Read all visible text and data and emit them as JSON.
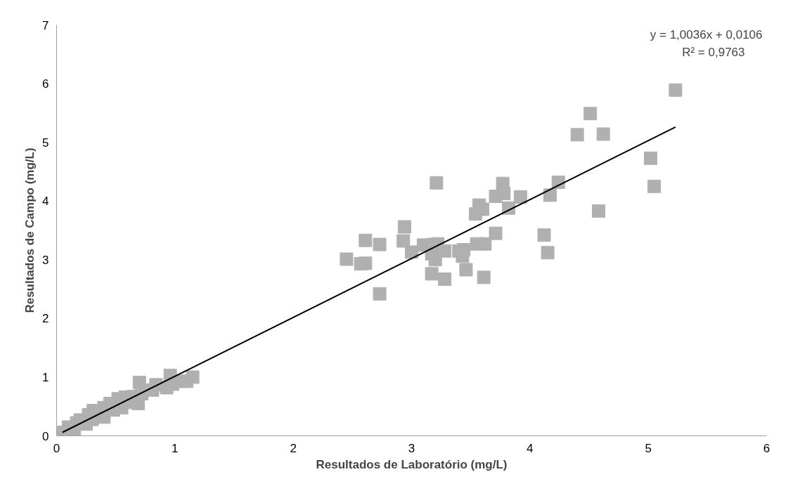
{
  "chart_data": {
    "type": "scatter",
    "xlabel": "Resultados de Laboratório (mg/L)",
    "ylabel": "Resultados de Campo (mg/L)",
    "annotations": [
      "y = 1,0036x + 0,0106",
      "R² = 0,9763"
    ],
    "xlim": [
      0,
      6
    ],
    "ylim": [
      0,
      7
    ],
    "xticks": [
      0,
      1,
      2,
      3,
      4,
      5,
      6
    ],
    "yticks": [
      0,
      1,
      2,
      3,
      4,
      5,
      6,
      7
    ],
    "grid": false,
    "marker": "square",
    "series": [
      {
        "color": "#b0b0b0",
        "x": [
          5.23,
          4.51,
          4.4,
          4.62,
          5.02,
          5.05,
          4.58,
          4.24,
          4.17,
          4.12,
          4.15,
          3.92,
          3.82,
          3.77,
          3.78,
          3.71,
          3.57,
          3.6,
          3.54,
          3.71,
          3.55,
          3.62,
          3.44,
          3.4,
          3.43,
          3.46,
          3.61,
          3.28,
          3.17,
          3.21,
          3.18,
          3.22,
          3.1,
          3.0,
          3.2,
          3.17,
          3.28,
          2.94,
          2.93,
          2.73,
          2.61,
          2.61,
          2.57,
          2.45,
          2.73,
          1.15,
          1.07,
          1.1,
          0.96,
          0.93,
          0.98,
          0.84,
          0.81,
          0.7,
          0.72,
          0.69,
          0.65,
          0.6,
          0.58,
          0.55,
          0.52,
          0.48,
          0.45,
          0.4,
          0.4,
          0.31,
          0.3,
          0.27,
          0.2,
          0.17,
          0.1,
          0.15,
          0.25,
          0.06
        ],
        "values": [
          5.89,
          5.49,
          5.13,
          5.14,
          4.73,
          4.25,
          3.83,
          4.32,
          4.1,
          3.42,
          3.12,
          4.07,
          3.88,
          4.3,
          4.13,
          4.08,
          3.93,
          3.86,
          3.78,
          3.45,
          3.27,
          3.27,
          3.17,
          3.15,
          3.06,
          2.83,
          2.7,
          2.67,
          2.76,
          4.31,
          3.26,
          3.27,
          3.25,
          3.13,
          3.0,
          3.1,
          3.15,
          3.56,
          3.32,
          3.26,
          3.33,
          2.94,
          2.93,
          3.01,
          2.42,
          1.0,
          0.93,
          0.93,
          1.03,
          0.82,
          0.88,
          0.87,
          0.78,
          0.91,
          0.72,
          0.55,
          0.67,
          0.57,
          0.66,
          0.48,
          0.63,
          0.44,
          0.55,
          0.32,
          0.48,
          0.43,
          0.28,
          0.36,
          0.27,
          0.22,
          0.15,
          0.1,
          0.2,
          0.06
        ]
      },
      {
        "type": "line",
        "marker": "none",
        "color": "#000000",
        "x": [
          0.05,
          5.23
        ],
        "values": [
          0.06,
          5.26
        ]
      }
    ]
  }
}
